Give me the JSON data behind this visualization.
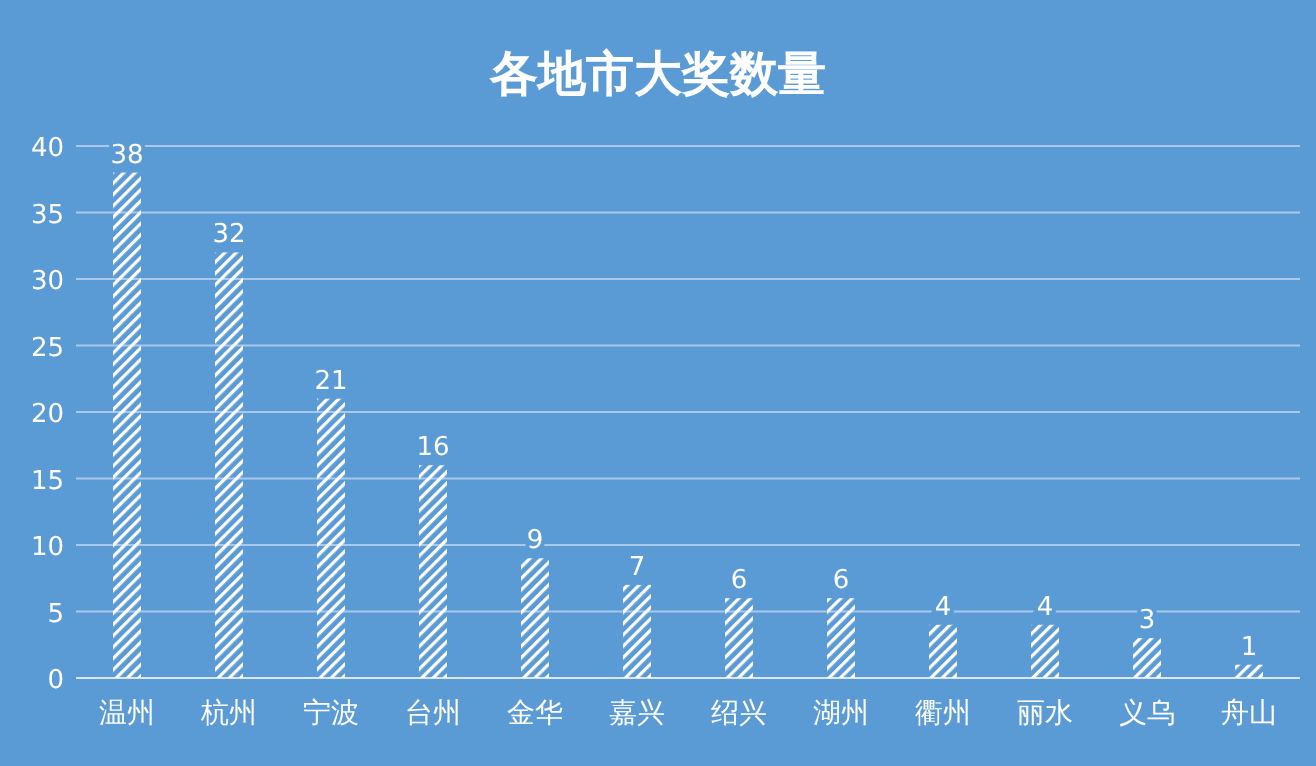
{
  "chart_data": {
    "type": "bar",
    "title": "各地市大奖数量",
    "categories": [
      "温州",
      "杭州",
      "宁波",
      "台州",
      "金华",
      "嘉兴",
      "绍兴",
      "湖州",
      "衢州",
      "丽水",
      "义乌",
      "舟山"
    ],
    "values": [
      38,
      32,
      21,
      16,
      9,
      7,
      6,
      6,
      4,
      4,
      3,
      1
    ],
    "color": "#ffffff",
    "ylim": [
      0,
      40
    ],
    "yticks": [
      0,
      5,
      10,
      15,
      20,
      25,
      30,
      35,
      40
    ],
    "grid": "y",
    "data_labels": true
  }
}
